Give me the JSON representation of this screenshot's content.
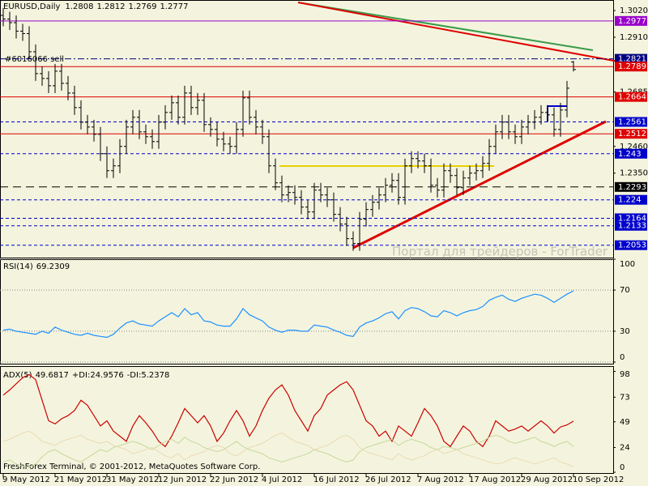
{
  "chart_data": [
    {
      "type": "ohlc",
      "title": "EURUSD,Daily",
      "color": "#000000",
      "open": [
        1.3,
        1.2985,
        1.297,
        1.2935,
        1.2925,
        1.285,
        1.276,
        1.274,
        1.271,
        1.277,
        1.272,
        1.268,
        1.262,
        1.256,
        1.254,
        1.251,
        1.243,
        1.236,
        1.238,
        1.246,
        1.254,
        1.258,
        1.252,
        1.25,
        1.248,
        1.256,
        1.26,
        1.264,
        1.258,
        1.268,
        1.262,
        1.265,
        1.255,
        1.253,
        1.249,
        1.247,
        1.246,
        1.253,
        1.266,
        1.258,
        1.254,
        1.25,
        1.238,
        1.231,
        1.226,
        1.227,
        1.225,
        1.221,
        1.219,
        1.228,
        1.226,
        1.224,
        1.218,
        1.214,
        1.208,
        1.206,
        1.216,
        1.22,
        1.223,
        1.226,
        1.23,
        1.232,
        1.225,
        1.238,
        1.241,
        1.24,
        1.238,
        1.23,
        1.228,
        1.236,
        1.234,
        1.229,
        1.233,
        1.235,
        1.236,
        1.239,
        1.246,
        1.252,
        1.256,
        1.252,
        1.25,
        1.254,
        1.256,
        1.258,
        1.26,
        1.259,
        1.253,
        1.261,
        1.2808
      ],
      "high": [
        1.303,
        1.3015,
        1.3,
        1.2965,
        1.2955,
        1.288,
        1.279,
        1.277,
        1.28,
        1.28,
        1.275,
        1.271,
        1.265,
        1.259,
        1.257,
        1.254,
        1.246,
        1.241,
        1.249,
        1.257,
        1.261,
        1.261,
        1.255,
        1.253,
        1.259,
        1.263,
        1.267,
        1.267,
        1.271,
        1.271,
        1.268,
        1.268,
        1.258,
        1.256,
        1.252,
        1.25,
        1.256,
        1.269,
        1.269,
        1.261,
        1.257,
        1.253,
        1.241,
        1.234,
        1.23,
        1.23,
        1.228,
        1.224,
        1.231,
        1.231,
        1.229,
        1.227,
        1.221,
        1.217,
        1.211,
        1.219,
        1.223,
        1.226,
        1.229,
        1.233,
        1.235,
        1.235,
        1.241,
        1.244,
        1.244,
        1.243,
        1.241,
        1.233,
        1.239,
        1.239,
        1.237,
        1.236,
        1.238,
        1.239,
        1.242,
        1.249,
        1.255,
        1.259,
        1.259,
        1.255,
        1.257,
        1.259,
        1.261,
        1.263,
        1.263,
        1.262,
        1.264,
        1.273,
        1.2812
      ],
      "low": [
        1.2955,
        1.294,
        1.2905,
        1.2895,
        1.282,
        1.273,
        1.271,
        1.268,
        1.268,
        1.269,
        1.265,
        1.259,
        1.253,
        1.251,
        1.248,
        1.24,
        1.233,
        1.233,
        1.235,
        1.243,
        1.251,
        1.249,
        1.247,
        1.245,
        1.245,
        1.253,
        1.257,
        1.255,
        1.255,
        1.259,
        1.259,
        1.252,
        1.25,
        1.246,
        1.244,
        1.243,
        1.243,
        1.25,
        1.255,
        1.251,
        1.247,
        1.235,
        1.228,
        1.223,
        1.223,
        1.222,
        1.218,
        1.216,
        1.216,
        1.223,
        1.221,
        1.215,
        1.211,
        1.205,
        1.203,
        1.203,
        1.213,
        1.217,
        1.22,
        1.223,
        1.227,
        1.222,
        1.222,
        1.235,
        1.237,
        1.235,
        1.227,
        1.225,
        1.225,
        1.231,
        1.226,
        1.226,
        1.23,
        1.232,
        1.233,
        1.236,
        1.243,
        1.249,
        1.249,
        1.247,
        1.247,
        1.251,
        1.253,
        1.255,
        1.256,
        1.25,
        1.25,
        1.258,
        1.2769
      ],
      "close": [
        1.2985,
        1.297,
        1.2935,
        1.2925,
        1.285,
        1.276,
        1.274,
        1.271,
        1.277,
        1.272,
        1.268,
        1.262,
        1.256,
        1.254,
        1.251,
        1.243,
        1.236,
        1.238,
        1.246,
        1.254,
        1.258,
        1.252,
        1.25,
        1.248,
        1.256,
        1.26,
        1.264,
        1.258,
        1.268,
        1.262,
        1.265,
        1.255,
        1.253,
        1.249,
        1.247,
        1.246,
        1.253,
        1.266,
        1.258,
        1.254,
        1.25,
        1.238,
        1.231,
        1.226,
        1.227,
        1.225,
        1.221,
        1.219,
        1.228,
        1.226,
        1.224,
        1.218,
        1.214,
        1.208,
        1.206,
        1.216,
        1.22,
        1.223,
        1.226,
        1.23,
        1.232,
        1.225,
        1.238,
        1.241,
        1.24,
        1.238,
        1.23,
        1.228,
        1.236,
        1.234,
        1.229,
        1.233,
        1.235,
        1.236,
        1.239,
        1.246,
        1.252,
        1.256,
        1.252,
        1.25,
        1.254,
        1.256,
        1.258,
        1.26,
        1.259,
        1.253,
        1.261,
        1.27,
        1.2777
      ],
      "xlim": [
        -0.5,
        94.125
      ],
      "xticks": [
        {
          "value": 0,
          "label": "9 May 2012"
        },
        {
          "value": 8,
          "label": "21 May 2012"
        },
        {
          "value": 16,
          "label": "31 May 2012"
        },
        {
          "value": 24,
          "label": "12 Jun 2012"
        },
        {
          "value": 32,
          "label": "22 Jun 2012"
        },
        {
          "value": 40,
          "label": "4 Jul 2012"
        },
        {
          "value": 48,
          "label": "16 Jul 2012"
        },
        {
          "value": 56,
          "label": "26 Jul 2012"
        },
        {
          "value": 64,
          "label": "7 Aug 2012"
        },
        {
          "value": 72,
          "label": "17 Aug 2012"
        },
        {
          "value": 80,
          "label": "29 Aug 2012"
        },
        {
          "value": 88,
          "label": "10 Sep 2012"
        }
      ],
      "ylim": [
        1.2002,
        1.306
      ],
      "yticks": [
        {
          "value": 1.302,
          "label": "1.3020"
        },
        {
          "value": 1.291,
          "label": "1.2910"
        },
        1.2685,
        {
          "value": 1.246,
          "label": "1.2460"
        },
        {
          "value": 1.235,
          "label": "1.2350"
        }
      ],
      "levels": [
        {
          "value": 1.2977,
          "color": "#9900cc",
          "style": "solid"
        },
        {
          "value": 1.2821,
          "color": "#000080",
          "style": "dashdot"
        },
        {
          "value": 1.2789,
          "color": "#e00000",
          "style": "solid"
        },
        {
          "value": 1.2664,
          "color": "#e00000",
          "style": "solid"
        },
        {
          "value": 1.2561,
          "color": "#0000cc",
          "style": "dash"
        },
        {
          "value": 1.2512,
          "color": "#e00000",
          "style": "solid"
        },
        {
          "value": 1.243,
          "color": "#0000cc",
          "style": "dash"
        },
        {
          "value": 1.2293,
          "color": "#000000",
          "style": "longdash"
        },
        {
          "value": 1.224,
          "color": "#0000cc",
          "style": "dash"
        },
        {
          "value": 1.2164,
          "color": "#0000cc",
          "style": "dash"
        },
        {
          "value": 1.2133,
          "color": "#0000cc",
          "style": "dash"
        },
        {
          "value": 1.2053,
          "color": "#0000cc",
          "style": "dash"
        }
      ],
      "annotation": "#6016066 sell",
      "watermark": "Портал для трейдеров - ForTrader"
    },
    {
      "type": "line",
      "ylim": [
        0,
        100
      ],
      "yticks": [
        0,
        30,
        70,
        100
      ],
      "grid": true,
      "series": [
        {
          "name": "RSI(14)",
          "color": "#1e90ff",
          "values": [
            31,
            32,
            30,
            29,
            28,
            27,
            30,
            28,
            34,
            31,
            29,
            27,
            26,
            28,
            26,
            25,
            24,
            27,
            33,
            38,
            40,
            37,
            36,
            35,
            40,
            44,
            48,
            44,
            52,
            46,
            48,
            40,
            39,
            36,
            35,
            35,
            42,
            52,
            46,
            43,
            40,
            34,
            31,
            29,
            31,
            31,
            30,
            30,
            36,
            35,
            34,
            31,
            29,
            26,
            25,
            34,
            38,
            40,
            43,
            47,
            49,
            42,
            50,
            53,
            52,
            49,
            45,
            44,
            50,
            48,
            45,
            48,
            50,
            51,
            54,
            60,
            63,
            65,
            61,
            59,
            62,
            64,
            66,
            65,
            62,
            58,
            62,
            66,
            69.2309
          ]
        }
      ]
    },
    {
      "type": "line",
      "ylim": [
        0,
        100
      ],
      "yticks": [
        0,
        24,
        49,
        73,
        98
      ],
      "grid": false,
      "series": [
        {
          "name": "ADX(5)",
          "color": "#cc0000",
          "values": [
            75,
            80,
            86,
            92,
            95,
            90,
            70,
            50,
            47,
            52,
            55,
            60,
            70,
            65,
            55,
            45,
            50,
            40,
            35,
            30,
            45,
            55,
            48,
            40,
            30,
            25,
            35,
            48,
            62,
            55,
            48,
            55,
            45,
            30,
            38,
            50,
            60,
            50,
            35,
            45,
            60,
            72,
            80,
            85,
            75,
            60,
            50,
            40,
            55,
            62,
            75,
            80,
            85,
            88,
            80,
            65,
            50,
            45,
            35,
            40,
            30,
            45,
            40,
            35,
            48,
            62,
            55,
            45,
            30,
            25,
            35,
            45,
            40,
            30,
            25,
            35,
            50,
            45,
            40,
            42,
            45,
            40,
            45,
            50,
            45,
            38,
            44,
            46,
            49.6817
          ]
        },
        {
          "name": "+DI:",
          "color": "#c4d89a",
          "values": [
            10,
            12,
            8,
            6,
            5,
            8,
            15,
            20,
            22,
            18,
            15,
            12,
            10,
            14,
            18,
            22,
            20,
            24,
            26,
            28,
            30,
            28,
            25,
            22,
            26,
            30,
            32,
            28,
            34,
            30,
            28,
            24,
            22,
            20,
            22,
            26,
            30,
            25,
            22,
            20,
            18,
            14,
            12,
            10,
            12,
            14,
            16,
            18,
            22,
            20,
            18,
            15,
            12,
            10,
            12,
            20,
            24,
            26,
            28,
            30,
            32,
            26,
            30,
            32,
            30,
            28,
            24,
            22,
            25,
            24,
            22,
            24,
            26,
            28,
            30,
            34,
            36,
            34,
            30,
            28,
            30,
            32,
            34,
            30,
            28,
            25,
            28,
            30,
            24.9576
          ]
        },
        {
          "name": "-DI:",
          "color": "#ead9b4",
          "values": [
            30,
            32,
            35,
            38,
            40,
            36,
            30,
            28,
            26,
            30,
            32,
            34,
            36,
            32,
            30,
            28,
            30,
            26,
            24,
            22,
            18,
            20,
            22,
            24,
            20,
            16,
            14,
            18,
            12,
            16,
            18,
            20,
            24,
            26,
            24,
            18,
            16,
            20,
            24,
            26,
            28,
            32,
            36,
            38,
            34,
            30,
            28,
            26,
            22,
            24,
            26,
            30,
            34,
            36,
            32,
            24,
            20,
            18,
            16,
            14,
            12,
            18,
            14,
            12,
            14,
            16,
            20,
            22,
            18,
            20,
            22,
            18,
            16,
            14,
            12,
            10,
            8,
            9,
            12,
            14,
            12,
            10,
            8,
            10,
            12,
            14,
            10,
            8,
            5.2378
          ]
        }
      ],
      "annotation": "FreshForex Terminal, © 2001-2012, MetaQuotes Software Corp."
    }
  ]
}
